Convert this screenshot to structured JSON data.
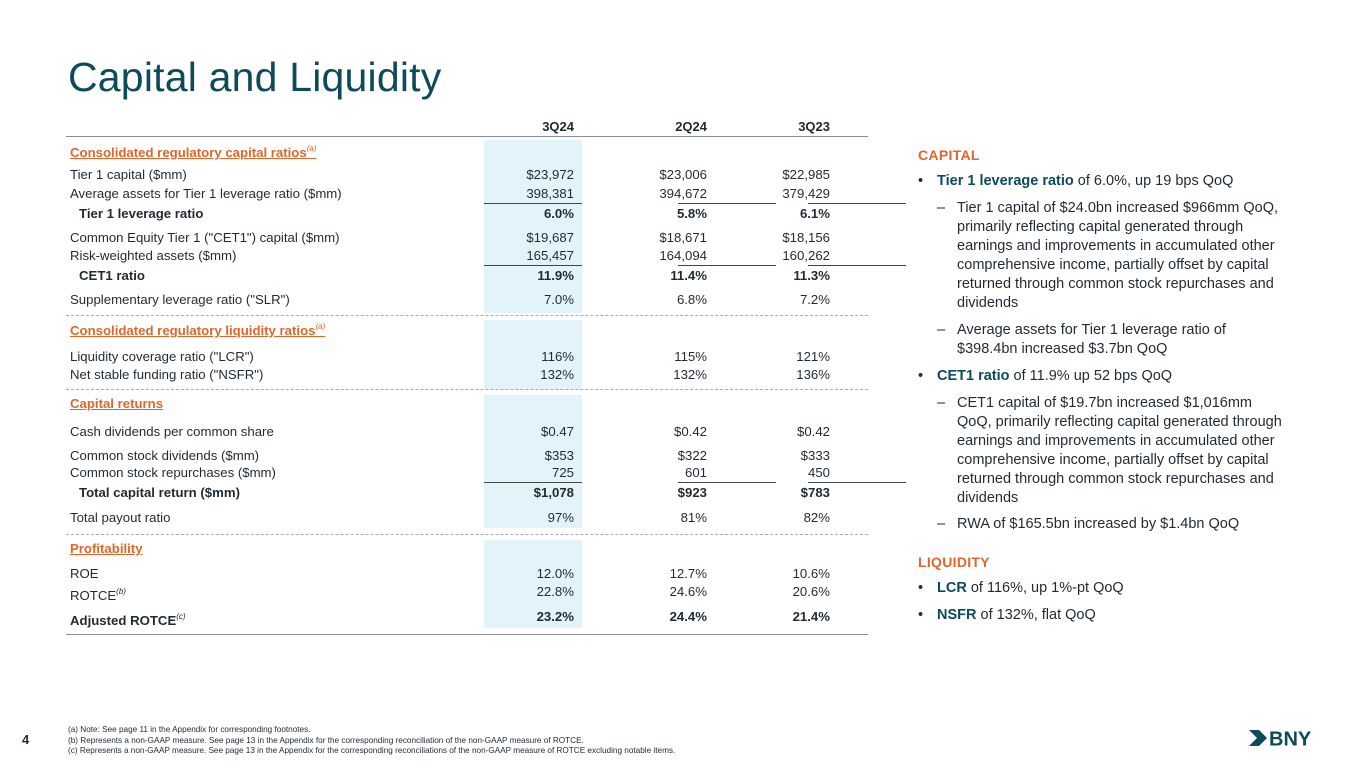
{
  "title": "Capital and Liquidity",
  "table": {
    "columns": [
      "3Q24",
      "2Q24",
      "3Q23"
    ],
    "sections": {
      "capital": {
        "label": "Consolidated regulatory capital ratios",
        "note": "(a)"
      },
      "liquidity": {
        "label": "Consolidated regulatory liquidity ratios",
        "note": "(a)"
      },
      "returns": {
        "label": "Capital returns"
      },
      "profitability": {
        "label": "Profitability"
      }
    },
    "rows": {
      "tier1_capital": {
        "label": "Tier 1 capital ($mm)",
        "values": [
          "$23,972",
          "$23,006",
          "$22,985"
        ]
      },
      "avg_assets": {
        "label": "Average assets for Tier 1 leverage ratio ($mm)",
        "values": [
          "398,381",
          "394,672",
          "379,429"
        ]
      },
      "tier1_leverage": {
        "label": "Tier 1 leverage ratio",
        "values": [
          "6.0%",
          "5.8%",
          "6.1%"
        ]
      },
      "cet1_capital": {
        "label": "Common Equity Tier 1 (\"CET1\") capital ($mm)",
        "values": [
          "$19,687",
          "$18,671",
          "$18,156"
        ]
      },
      "rwa": {
        "label": "Risk-weighted assets ($mm)",
        "values": [
          "165,457",
          "164,094",
          "160,262"
        ]
      },
      "cet1_ratio": {
        "label": "CET1 ratio",
        "values": [
          "11.9%",
          "11.4%",
          "11.3%"
        ]
      },
      "slr": {
        "label": "Supplementary leverage ratio (\"SLR\")",
        "values": [
          "7.0%",
          "6.8%",
          "7.2%"
        ]
      },
      "lcr": {
        "label": "Liquidity coverage ratio (\"LCR\")",
        "values": [
          "116%",
          "115%",
          "121%"
        ]
      },
      "nsfr": {
        "label": "Net stable funding ratio (\"NSFR\")",
        "values": [
          "132%",
          "132%",
          "136%"
        ]
      },
      "cash_div": {
        "label": "Cash dividends per common share",
        "values": [
          "$0.47",
          "$0.42",
          "$0.42"
        ]
      },
      "stock_div": {
        "label": "Common stock dividends ($mm)",
        "values": [
          "$353",
          "$322",
          "$333"
        ]
      },
      "repurchases": {
        "label": "Common stock repurchases ($mm)",
        "values": [
          "725",
          "601",
          "450"
        ]
      },
      "total_return": {
        "label": "Total capital return ($mm)",
        "values": [
          "$1,078",
          "$923",
          "$783"
        ]
      },
      "payout": {
        "label": "Total payout ratio",
        "values": [
          "97%",
          "81%",
          "82%"
        ]
      },
      "roe": {
        "label": "ROE",
        "values": [
          "12.0%",
          "12.7%",
          "10.6%"
        ]
      },
      "rotce": {
        "label": "ROTCE",
        "note": "(b)",
        "values": [
          "22.8%",
          "24.6%",
          "20.6%"
        ]
      },
      "adj_rotce": {
        "label": "Adjusted ROTCE",
        "note": "(c)",
        "values": [
          "23.2%",
          "24.4%",
          "21.4%"
        ]
      }
    }
  },
  "capital": {
    "heading": "CAPITAL",
    "tier1": {
      "kw": "Tier 1 leverage ratio",
      "rest": " of 6.0%, up 19 bps QoQ"
    },
    "tier1_sub1": "Tier 1 capital of $24.0bn increased $966mm QoQ, primarily reflecting capital generated through earnings and improvements in accumulated other comprehensive income, partially offset by capital returned through common stock repurchases and dividends",
    "tier1_sub2": "Average assets for Tier 1 leverage ratio of $398.4bn increased $3.7bn QoQ",
    "cet1": {
      "kw": "CET1 ratio",
      "rest": " of 11.9% up 52 bps QoQ"
    },
    "cet1_sub1": "CET1 capital of $19.7bn increased $1,016mm QoQ, primarily reflecting capital generated through earnings and improvements in accumulated other comprehensive income, partially offset by capital returned through common stock repurchases and dividends",
    "cet1_sub2": "RWA of $165.5bn increased by $1.4bn QoQ"
  },
  "liquidity": {
    "heading": "LIQUIDITY",
    "lcr": {
      "kw": "LCR",
      "rest": " of 116%, up 1%-pt QoQ"
    },
    "nsfr": {
      "kw": "NSFR",
      "rest": " of 132%, flat QoQ"
    }
  },
  "glyphs": {
    "bullet": "•",
    "dash": "–"
  },
  "footer": {
    "page": "4",
    "notes": [
      "(a) Note: See page 11 in the Appendix for corresponding footnotes.",
      "(b) Represents a non-GAAP measure. See page 13 in the Appendix for the corresponding reconciliation of the non-GAAP measure of ROTCE.",
      "(c) Represents a non-GAAP measure. See page 13 in the Appendix for the corresponding reconciliations of the non-GAAP measure of ROTCE excluding notable items."
    ],
    "logo": "BNY"
  },
  "colors": {
    "title": "#0d4a5a",
    "accent": "#e0662a",
    "highlight": "#e3f3fa",
    "text": "#1f2a33"
  }
}
